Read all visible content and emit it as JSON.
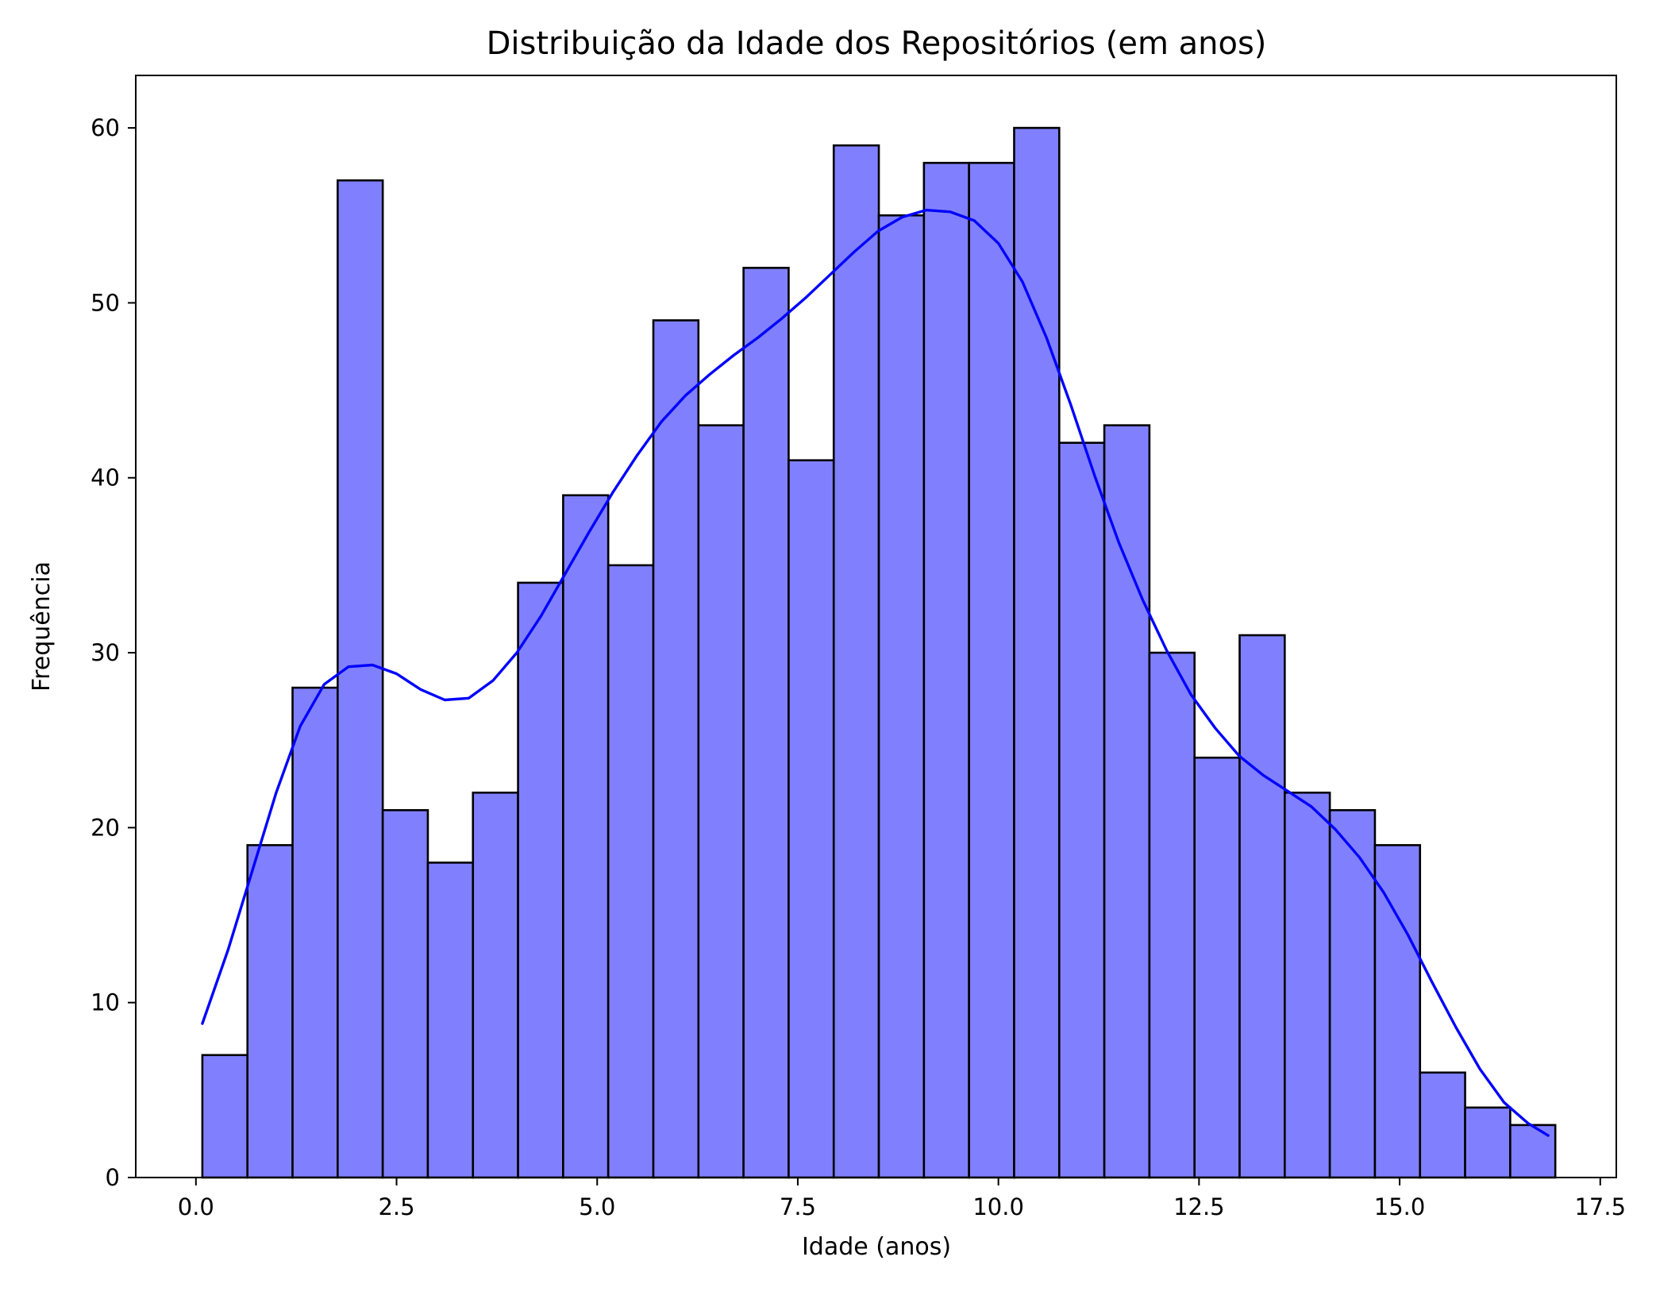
{
  "chart_data": {
    "type": "bar",
    "title": "Distribuição da Idade dos Repositórios (em anos)",
    "xlabel": "Idade (anos)",
    "ylabel": "Frequência",
    "xlim": [
      -0.75,
      17.7
    ],
    "ylim": [
      0,
      63
    ],
    "xticks": [
      0,
      2.5,
      5,
      7.5,
      10,
      12.5,
      15,
      17.5
    ],
    "xtick_labels": [
      "0.0",
      "2.5",
      "5.0",
      "7.5",
      "10.0",
      "12.5",
      "15.0",
      "17.5"
    ],
    "yticks": [
      0,
      10,
      20,
      30,
      40,
      50,
      60
    ],
    "ytick_labels": [
      "0",
      "10",
      "20",
      "30",
      "40",
      "50",
      "60"
    ],
    "bin_start": 0.08,
    "bin_width": 0.562,
    "values": [
      7,
      19,
      28,
      57,
      21,
      18,
      22,
      34,
      39,
      35,
      49,
      43,
      52,
      41,
      59,
      55,
      58,
      58,
      60,
      42,
      43,
      30,
      24,
      31,
      22,
      21,
      19,
      6,
      4,
      3
    ],
    "bar_color": "#8080ff",
    "bar_edge_color": "#000000",
    "kde_color": "#0000ff",
    "kde": {
      "x": [
        0.08,
        0.4,
        0.7,
        1.0,
        1.3,
        1.6,
        1.9,
        2.2,
        2.5,
        2.8,
        3.1,
        3.4,
        3.7,
        4.0,
        4.3,
        4.6,
        4.9,
        5.2,
        5.5,
        5.8,
        6.1,
        6.4,
        6.7,
        7.0,
        7.3,
        7.6,
        7.9,
        8.2,
        8.5,
        8.8,
        9.1,
        9.4,
        9.7,
        10.0,
        10.3,
        10.6,
        10.9,
        11.2,
        11.5,
        11.8,
        12.1,
        12.4,
        12.7,
        13.0,
        13.3,
        13.6,
        13.9,
        14.2,
        14.5,
        14.8,
        15.1,
        15.4,
        15.7,
        16.0,
        16.3,
        16.6,
        16.85
      ],
      "y": [
        8.8,
        13.0,
        17.5,
        22.0,
        25.8,
        28.2,
        29.2,
        29.3,
        28.8,
        27.9,
        27.3,
        27.4,
        28.4,
        30.0,
        32.1,
        34.5,
        36.9,
        39.2,
        41.3,
        43.2,
        44.7,
        45.9,
        47.0,
        48.0,
        49.1,
        50.3,
        51.6,
        52.9,
        54.1,
        54.9,
        55.3,
        55.2,
        54.7,
        53.4,
        51.2,
        48.0,
        44.2,
        40.1,
        36.3,
        33.0,
        30.1,
        27.6,
        25.7,
        24.1,
        23.0,
        22.1,
        21.2,
        19.9,
        18.3,
        16.3,
        13.9,
        11.2,
        8.6,
        6.2,
        4.3,
        3.1,
        2.4
      ]
    }
  }
}
